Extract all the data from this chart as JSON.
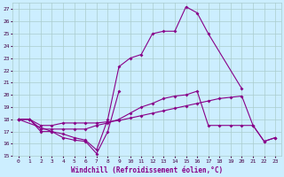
{
  "xlabel": "Windchill (Refroidissement éolien,°C)",
  "bg_color": "#cceeff",
  "grid_color": "#aacccc",
  "line_color": "#880088",
  "ylim": [
    15,
    27.5
  ],
  "xlim": [
    -0.5,
    23.5
  ],
  "lines": [
    {
      "x": [
        0,
        1,
        2,
        3,
        4,
        5,
        6,
        7,
        8,
        9
      ],
      "y": [
        18.0,
        18.0,
        17.0,
        17.0,
        16.5,
        16.3,
        16.2,
        15.2,
        17.0,
        20.3
      ]
    },
    {
      "x": [
        0,
        3,
        4,
        5,
        6,
        7,
        8,
        9,
        10,
        11,
        12,
        13,
        14,
        15,
        16,
        17,
        20
      ],
      "y": [
        18.0,
        17.0,
        16.8,
        16.5,
        16.3,
        15.5,
        18.0,
        22.3,
        23.0,
        23.3,
        25.0,
        25.2,
        25.2,
        27.2,
        26.7,
        25.0,
        20.5
      ]
    },
    {
      "x": [
        0,
        1,
        2,
        3,
        4,
        5,
        6,
        7,
        8,
        9,
        10,
        11,
        12,
        13,
        14,
        15,
        16,
        17,
        18,
        19,
        20,
        21,
        22,
        23
      ],
      "y": [
        18.0,
        18.0,
        17.2,
        17.2,
        17.2,
        17.2,
        17.2,
        17.5,
        17.7,
        18.0,
        18.5,
        19.0,
        19.3,
        19.7,
        19.9,
        20.0,
        20.3,
        17.5,
        17.5,
        17.5,
        17.5,
        17.5,
        16.2,
        16.5
      ]
    },
    {
      "x": [
        0,
        1,
        2,
        3,
        4,
        5,
        6,
        7,
        8,
        9,
        10,
        11,
        12,
        13,
        14,
        15,
        16,
        17,
        18,
        19,
        20,
        21,
        22,
        23
      ],
      "y": [
        18.0,
        18.0,
        17.5,
        17.5,
        17.7,
        17.7,
        17.7,
        17.7,
        17.8,
        17.9,
        18.1,
        18.3,
        18.5,
        18.7,
        18.9,
        19.1,
        19.3,
        19.5,
        19.7,
        19.8,
        19.9,
        17.5,
        16.2,
        16.5
      ]
    }
  ]
}
